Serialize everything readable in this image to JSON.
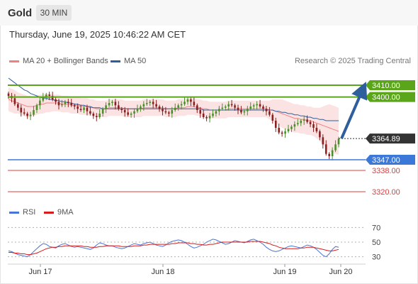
{
  "header": {
    "title": "Gold",
    "timeframe": "30 MIN"
  },
  "datetime": "Thursday, June 19, 2025 10:46:22 AM CET",
  "legend_main": [
    {
      "label": "MA 20 + Bollinger Bands",
      "color": "#f08080"
    },
    {
      "label": "MA 50",
      "color": "#2e5f9c"
    }
  ],
  "copyright": "Research © 2025 Trading Central",
  "legend_rsi": [
    {
      "label": "RSI",
      "color": "#4a74d6"
    },
    {
      "label": "9MA",
      "color": "#d81b1b"
    }
  ],
  "chart_data": [
    {
      "type": "candlestick",
      "x_labels": [
        "Jun 17",
        "Jun 18",
        "Jun 19",
        "Jun 20"
      ],
      "ylim": [
        3311,
        3422
      ],
      "current_price": {
        "value": 3364.89,
        "label": "3364.89",
        "color": "#333333"
      },
      "levels": [
        {
          "value": 3410.0,
          "label": "3410.00",
          "color": "#5aa51a",
          "kind": "resistance"
        },
        {
          "value": 3400.0,
          "label": "3400.00",
          "color": "#5aa51a",
          "kind": "resistance"
        },
        {
          "value": 3347.0,
          "label": "3347.00",
          "color": "#3b78d8",
          "kind": "pivot"
        },
        {
          "value": 3338.0,
          "label": "3338.00",
          "color": "#e03c3c",
          "kind": "support"
        },
        {
          "value": 3320.0,
          "label": "3320.00",
          "color": "#e03c3c",
          "kind": "support"
        }
      ],
      "arrow": {
        "from": 3364.89,
        "to": 3410.0,
        "direction": "up",
        "color": "#2e5f9c"
      },
      "closes": [
        3401,
        3399,
        3394,
        3391,
        3387,
        3386,
        3384,
        3385,
        3389,
        3393,
        3397,
        3400,
        3402,
        3401,
        3398,
        3396,
        3393,
        3394,
        3396,
        3395,
        3393,
        3392,
        3390,
        3389,
        3391,
        3388,
        3386,
        3384,
        3383,
        3386,
        3390,
        3393,
        3395,
        3396,
        3393,
        3390,
        3389,
        3387,
        3385,
        3386,
        3388,
        3390,
        3392,
        3394,
        3395,
        3396,
        3394,
        3392,
        3390,
        3388,
        3387,
        3386,
        3389,
        3391,
        3393,
        3394,
        3396,
        3398,
        3396,
        3393,
        3389,
        3386,
        3383,
        3382,
        3384,
        3386,
        3388,
        3390,
        3391,
        3392,
        3394,
        3393,
        3391,
        3389,
        3387,
        3388,
        3390,
        3392,
        3393,
        3394,
        3392,
        3390,
        3388,
        3385,
        3380,
        3374,
        3370,
        3369,
        3371,
        3373,
        3375,
        3377,
        3378,
        3380,
        3381,
        3379,
        3377,
        3374,
        3371,
        3366,
        3360,
        3352,
        3350,
        3355,
        3360,
        3364.89
      ],
      "ma20": [
        3398,
        3397,
        3396,
        3395,
        3394,
        3393,
        3392,
        3392,
        3392,
        3393,
        3394,
        3394,
        3395,
        3395,
        3395,
        3395,
        3395,
        3394,
        3394,
        3394,
        3393,
        3393,
        3393,
        3392,
        3392,
        3392,
        3391,
        3391,
        3390,
        3390,
        3390,
        3390,
        3391,
        3391,
        3391,
        3391,
        3391,
        3390,
        3390,
        3390,
        3390,
        3390,
        3390,
        3391,
        3391,
        3391,
        3391,
        3391,
        3391,
        3391,
        3390,
        3390,
        3390,
        3390,
        3391,
        3391,
        3391,
        3392,
        3392,
        3392,
        3391,
        3391,
        3390,
        3390,
        3389,
        3389,
        3389,
        3389,
        3389,
        3389,
        3390,
        3390,
        3390,
        3390,
        3390,
        3390,
        3390,
        3390,
        3390,
        3390,
        3390,
        3390,
        3390,
        3389,
        3389,
        3388,
        3387,
        3386,
        3385,
        3384,
        3383,
        3382,
        3382,
        3381,
        3381,
        3380,
        3380,
        3379,
        3378,
        3377,
        3376,
        3375,
        3374,
        3373,
        3372,
        3371
      ],
      "ma50": [
        3416,
        3414,
        3412,
        3410,
        3408,
        3406,
        3405,
        3403,
        3402,
        3401,
        3400,
        3399,
        3399,
        3398,
        3398,
        3397,
        3397,
        3396,
        3396,
        3395,
        3395,
        3394,
        3394,
        3393,
        3393,
        3392,
        3392,
        3391,
        3391,
        3391,
        3390,
        3390,
        3390,
        3390,
        3390,
        3390,
        3390,
        3390,
        3390,
        3390,
        3390,
        3390,
        3390,
        3390,
        3390,
        3390,
        3390,
        3390,
        3390,
        3390,
        3390,
        3390,
        3390,
        3390,
        3390,
        3390,
        3390,
        3390,
        3390,
        3390,
        3390,
        3390,
        3389,
        3389,
        3389,
        3389,
        3389,
        3389,
        3389,
        3389,
        3389,
        3389,
        3389,
        3389,
        3389,
        3389,
        3389,
        3389,
        3389,
        3389,
        3389,
        3389,
        3389,
        3389,
        3389,
        3388,
        3388,
        3387,
        3387,
        3386,
        3386,
        3385,
        3385,
        3384,
        3384,
        3383,
        3383,
        3382,
        3382,
        3381,
        3381,
        3380,
        3380,
        3380,
        3380,
        3380
      ],
      "bb_width": [
        10,
        10,
        10,
        9,
        9,
        9,
        9,
        9,
        8,
        8,
        8,
        8,
        8,
        8,
        7,
        7,
        7,
        7,
        7,
        7,
        7,
        7,
        7,
        7,
        7,
        7,
        7,
        7,
        7,
        7,
        7,
        7,
        7,
        7,
        7,
        7,
        7,
        7,
        7,
        7,
        7,
        7,
        7,
        7,
        7,
        7,
        7,
        7,
        7,
        7,
        7,
        7,
        7,
        7,
        7,
        7,
        7,
        7,
        7,
        7,
        7,
        7,
        7,
        7,
        7,
        7,
        7,
        7,
        7,
        7,
        7,
        7,
        7,
        7,
        7,
        7,
        7,
        7,
        7,
        7,
        7,
        7,
        7,
        8,
        9,
        10,
        11,
        12,
        12,
        12,
        12,
        12,
        12,
        12,
        12,
        12,
        12,
        12,
        13,
        14,
        16,
        18,
        20,
        20,
        20,
        20
      ]
    },
    {
      "type": "line",
      "title": "RSI",
      "yticks": [
        30,
        50,
        70
      ],
      "ylim": [
        20,
        80
      ],
      "series": [
        {
          "name": "RSI",
          "color": "#4a74d6",
          "values": [
            38,
            37,
            35,
            33,
            32,
            31,
            30,
            33,
            37,
            41,
            45,
            48,
            47,
            44,
            43,
            42,
            45,
            47,
            48,
            46,
            44,
            43,
            44,
            43,
            42,
            41,
            40,
            42,
            46,
            49,
            48,
            46,
            45,
            45,
            43,
            42,
            41,
            42,
            44,
            46,
            48,
            47,
            46,
            48,
            49,
            50,
            48,
            46,
            45,
            44,
            46,
            49,
            51,
            52,
            53,
            52,
            50,
            47,
            44,
            42,
            43,
            45,
            47,
            50,
            52,
            54,
            53,
            51,
            49,
            47,
            48,
            50,
            52,
            51,
            50,
            49,
            51,
            53,
            54,
            52,
            50,
            47,
            43,
            40,
            38,
            37,
            38,
            40,
            42,
            44,
            45,
            44,
            43,
            42,
            44,
            46,
            45,
            43,
            40,
            36,
            32,
            30,
            34,
            40,
            44,
            43
          ]
        },
        {
          "name": "9MA",
          "color": "#d81b1b",
          "values": [
            36,
            36,
            35,
            35,
            34,
            34,
            33,
            33,
            34,
            35,
            37,
            39,
            41,
            42,
            43,
            43,
            44,
            44,
            45,
            45,
            45,
            45,
            45,
            45,
            44,
            44,
            43,
            43,
            43,
            44,
            44,
            45,
            45,
            45,
            45,
            45,
            44,
            44,
            44,
            44,
            45,
            45,
            45,
            46,
            46,
            47,
            47,
            47,
            47,
            47,
            47,
            47,
            48,
            48,
            49,
            49,
            49,
            49,
            48,
            48,
            47,
            47,
            46,
            46,
            47,
            47,
            48,
            49,
            50,
            50,
            50,
            50,
            50,
            50,
            50,
            50,
            50,
            51,
            51,
            51,
            51,
            50,
            49,
            48,
            46,
            45,
            43,
            42,
            41,
            41,
            41,
            41,
            41,
            42,
            42,
            43,
            43,
            43,
            42,
            41,
            40,
            39,
            38,
            38,
            39,
            40
          ]
        }
      ]
    }
  ]
}
